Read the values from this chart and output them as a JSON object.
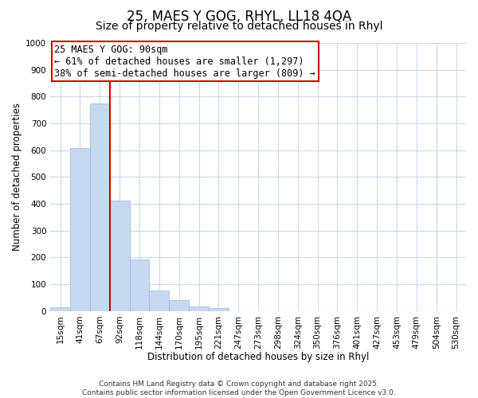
{
  "title": "25, MAES Y GOG, RHYL, LL18 4QA",
  "subtitle": "Size of property relative to detached houses in Rhyl",
  "xlabel": "Distribution of detached houses by size in Rhyl",
  "ylabel": "Number of detached properties",
  "categories": [
    "15sqm",
    "41sqm",
    "67sqm",
    "92sqm",
    "118sqm",
    "144sqm",
    "170sqm",
    "195sqm",
    "221sqm",
    "247sqm",
    "273sqm",
    "298sqm",
    "324sqm",
    "350sqm",
    "376sqm",
    "401sqm",
    "427sqm",
    "453sqm",
    "479sqm",
    "504sqm",
    "530sqm"
  ],
  "values": [
    15,
    608,
    773,
    413,
    192,
    78,
    40,
    18,
    10,
    0,
    0,
    0,
    0,
    0,
    0,
    0,
    0,
    0,
    0,
    0,
    0
  ],
  "bar_color": "#c6d9f1",
  "bar_edge_color": "#9ab3d5",
  "vline_color": "#cc0000",
  "annotation_title": "25 MAES Y GOG: 90sqm",
  "annotation_line1": "← 61% of detached houses are smaller (1,297)",
  "annotation_line2": "38% of semi-detached houses are larger (809) →",
  "annotation_box_color": "#ffffff",
  "annotation_box_edge_color": "#cc0000",
  "ylim": [
    0,
    1000
  ],
  "yticks": [
    0,
    100,
    200,
    300,
    400,
    500,
    600,
    700,
    800,
    900,
    1000
  ],
  "footer_line1": "Contains HM Land Registry data © Crown copyright and database right 2025.",
  "footer_line2": "Contains public sector information licensed under the Open Government Licence v3.0.",
  "bg_color": "#ffffff",
  "grid_color": "#c8d8e8",
  "title_fontsize": 12,
  "subtitle_fontsize": 10,
  "axis_label_fontsize": 8.5,
  "tick_fontsize": 7.5,
  "annotation_fontsize": 8.5,
  "footer_fontsize": 6.5
}
